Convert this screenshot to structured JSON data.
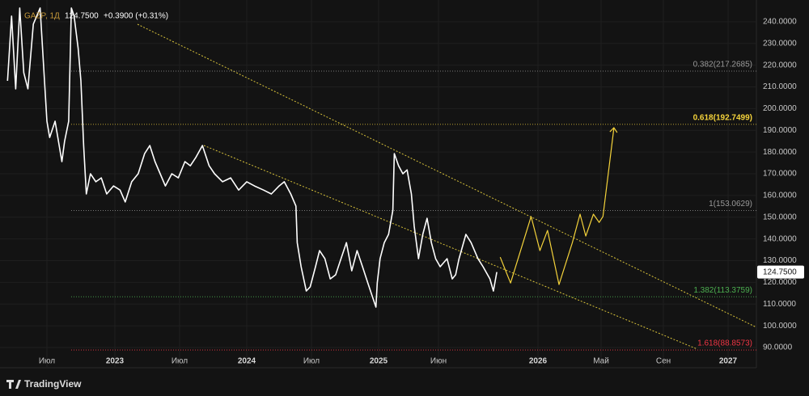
{
  "chart_data": {
    "type": "line",
    "title": "GAZP, 1Д",
    "header_price": "124.7500",
    "change": "+0.3900 (+0.31%)",
    "brand": "TradingView",
    "xlim": [
      2022.15,
      2027.15
    ],
    "xticks": [
      {
        "value": 2022.5,
        "label": "Июл"
      },
      2023,
      {
        "value": 2023.5,
        "label": "Июл"
      },
      2024,
      {
        "value": 2024.5,
        "label": "Июл"
      },
      2025,
      {
        "value": 2025.42,
        "label": "Июн"
      },
      2026,
      {
        "value": 2026.33,
        "label": "Май"
      },
      {
        "value": 2026.67,
        "label": "Сен"
      },
      2027
    ],
    "ylim": [
      80.7,
      250
    ],
    "yticks": [
      {
        "value": 90,
        "label": "90.0000"
      },
      {
        "value": 100,
        "label": "100.0000"
      },
      {
        "value": 110,
        "label": "110.0000"
      },
      {
        "value": 120,
        "label": "120.0000"
      },
      {
        "value": 130,
        "label": "130.0000"
      },
      {
        "value": 140,
        "label": "140.0000"
      },
      {
        "value": 150,
        "label": "150.0000"
      },
      {
        "value": 160,
        "label": "160.0000"
      },
      {
        "value": 170,
        "label": "170.0000"
      },
      {
        "value": 180,
        "label": "180.0000"
      },
      {
        "value": 190,
        "label": "190.0000"
      },
      {
        "value": 200,
        "label": "200.0000"
      },
      {
        "value": 210,
        "label": "210.0000"
      },
      {
        "value": 220,
        "label": "220.0000"
      },
      {
        "value": 230,
        "label": "230.0000"
      },
      {
        "value": 240,
        "label": "240.0000"
      }
    ],
    "grid": true,
    "last_price": {
      "value": 124.75,
      "label": "124.7500"
    },
    "levels": [
      {
        "label": "0.382(217.2685)",
        "value": 217.2685,
        "color": "#9a9a9a"
      },
      {
        "label": "0.618(192.7499)",
        "value": 192.7499,
        "color": "#f5d33b"
      },
      {
        "label": "1(153.0629)",
        "value": 153.0629,
        "color": "#9a9a9a"
      },
      {
        "label": "1.382(113.3759)",
        "value": 113.3759,
        "color": "#4caf50"
      },
      {
        "label": "1.618(88.8573)",
        "value": 88.8573,
        "color": "#f23645"
      }
    ],
    "series": [
      {
        "color": "#ffffff",
        "x": [
          2022.21,
          2022.24,
          2022.27,
          2022.3,
          2022.33,
          2022.36,
          2022.4,
          2022.45,
          2022.5,
          2022.52,
          2022.56,
          2022.61,
          2022.63,
          2022.66,
          2022.68,
          2022.7,
          2022.73,
          2022.75,
          2022.77,
          2022.79,
          2022.82,
          2022.86,
          2022.9,
          2022.94,
          2022.99,
          2023.04,
          2023.08,
          2023.13,
          2023.18,
          2023.23,
          2023.27,
          2023.31,
          2023.35,
          2023.39,
          2023.44,
          2023.49,
          2023.54,
          2023.58,
          2023.62,
          2023.67,
          2023.72,
          2023.76,
          2023.82,
          2023.88,
          2023.94,
          2024.0,
          2024.06,
          2024.13,
          2024.19,
          2024.25,
          2024.29,
          2024.34,
          2024.38,
          2024.39,
          2024.42,
          2024.46,
          2024.49,
          2024.53,
          2024.56,
          2024.6,
          2024.64,
          2024.68,
          2024.72,
          2024.76,
          2024.8,
          2024.84,
          2024.88,
          2024.92,
          2024.95,
          2024.98,
          2024.99,
          2025.01,
          2025.04,
          2025.07,
          2025.1,
          2025.11,
          2025.14,
          2025.17,
          2025.2,
          2025.23,
          2025.25,
          2025.28,
          2025.31,
          2025.34,
          2025.37,
          2025.4,
          2025.43,
          2025.47,
          2025.5,
          2025.52,
          2025.54,
          2025.58,
          2025.61,
          2025.65,
          2025.68,
          2025.72,
          2025.74,
          2025.76
        ],
        "values": [
          212.8,
          242.6,
          209.1,
          246.3,
          216.5,
          209.1,
          238.9,
          246.3,
          194.2,
          186.7,
          194.2,
          175.6,
          184.9,
          194.2,
          246.3,
          242.6,
          227.7,
          212.8,
          183.0,
          160.7,
          170.0,
          166.3,
          168.1,
          160.7,
          164.4,
          162.5,
          157.0,
          166.3,
          170.0,
          179.3,
          183.0,
          175.6,
          170.0,
          164.4,
          170.0,
          168.1,
          175.6,
          173.7,
          177.4,
          183.0,
          173.7,
          170.0,
          166.3,
          168.1,
          162.5,
          166.3,
          164.4,
          162.5,
          160.7,
          164.4,
          166.3,
          160.7,
          155.1,
          138.3,
          127.2,
          116.0,
          117.9,
          127.2,
          134.6,
          130.9,
          121.6,
          123.5,
          130.9,
          138.3,
          125.3,
          134.6,
          127.2,
          119.7,
          114.1,
          108.6,
          119.7,
          130.9,
          138.3,
          142.1,
          153.2,
          179.3,
          173.7,
          170.0,
          171.8,
          160.7,
          145.8,
          130.9,
          142.1,
          149.5,
          138.3,
          130.9,
          127.2,
          130.9,
          121.6,
          123.5,
          130.9,
          142.1,
          138.3,
          130.9,
          127.2,
          121.6,
          116.0,
          124.75
        ]
      },
      {
        "color": "#f5d33b",
        "x": [
          2025.78,
          2025.84,
          2025.96,
          2026.01,
          2026.05,
          2026.11,
          2026.18,
          2026.22,
          2026.25,
          2026.29,
          2026.32,
          2026.34,
          2026.4
        ],
        "values": [
          131.6,
          119.7,
          150.3,
          134.6,
          143.9,
          119.0,
          138.3,
          151.4,
          141.3,
          151.4,
          147.6,
          150.3,
          191.2
        ]
      }
    ]
  }
}
